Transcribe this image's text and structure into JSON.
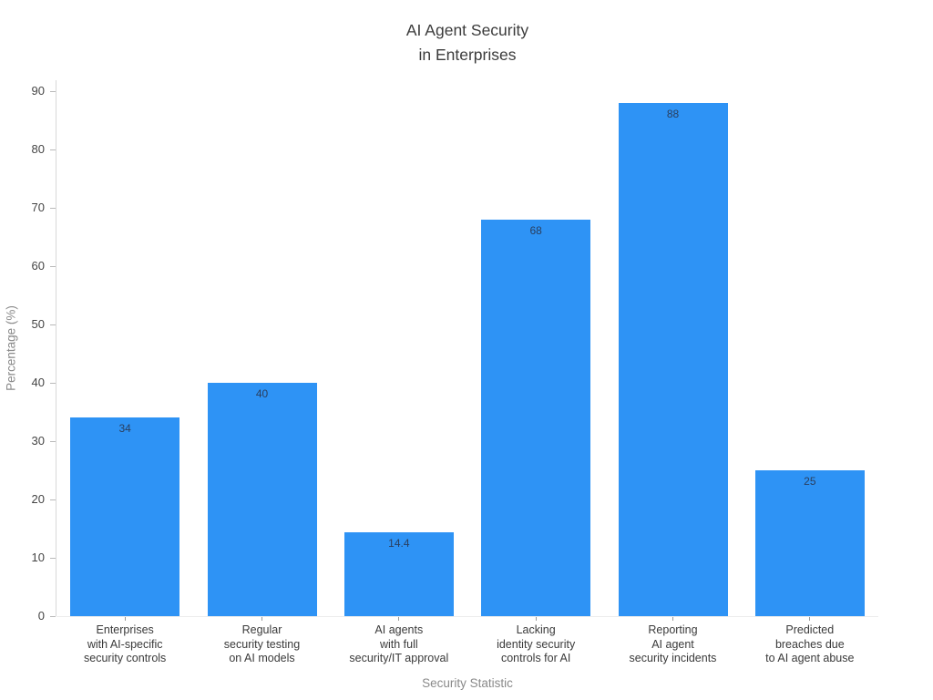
{
  "chart": {
    "title": "AI Agent Security\nin Enterprises"
  },
  "chart_data": {
    "type": "bar",
    "title": "AI Agent Security in Enterprises",
    "xlabel": "Security Statistic",
    "ylabel": "Percentage (%)",
    "categories": [
      "Enterprises\nwith AI-specific\nsecurity controls",
      "Regular\nsecurity testing\non AI models",
      "AI agents\nwith full\nsecurity/IT approval",
      "Lacking\nidentity security\ncontrols for AI",
      "Reporting\nAI agent\nsecurity incidents",
      "Predicted\nbreaches due\nto AI agent abuse"
    ],
    "values": [
      34,
      40,
      14.4,
      68,
      88,
      25
    ],
    "value_labels": [
      "34",
      "40",
      "14.4",
      "68",
      "88",
      "25"
    ],
    "yticks": [
      0,
      10,
      20,
      30,
      40,
      50,
      60,
      70,
      80,
      90
    ],
    "ylim": [
      0,
      91.875
    ],
    "grid": false,
    "legend": "none",
    "colors": {
      "bar": "#2E93F5",
      "value_label": "#2a3f5f",
      "tick_label": "#444444",
      "category_label": "#3a3a3a",
      "axis_title": "#8a8a8a",
      "title": "#3b3b3b",
      "spine": "#d9d9d9",
      "x_spine": "#ececec",
      "tick_mark": "#b9b9b9",
      "x_tick_mark": "#9a9a9a"
    }
  }
}
